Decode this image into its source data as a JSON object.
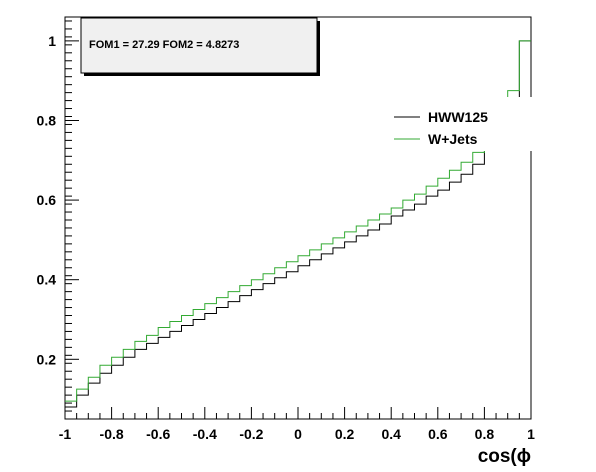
{
  "chart_data": {
    "type": "line",
    "drawstyle": "steps",
    "title": "",
    "xlabel": "cos(ϕ",
    "ylabel": "",
    "xlim": [
      -1,
      1
    ],
    "ylim": [
      0.05,
      1.06
    ],
    "grid": false,
    "x_ticks": [
      -1,
      -0.8,
      -0.6,
      -0.4,
      -0.2,
      0,
      0.2,
      0.4,
      0.6,
      0.8,
      1
    ],
    "x_tick_labels": [
      "-1",
      "-0.8",
      "-0.6",
      "-0.4",
      "-0.2",
      "0",
      "0.2",
      "0.4",
      "0.6",
      "0.8",
      "1"
    ],
    "y_ticks": [
      0.2,
      0.4,
      0.6,
      0.8,
      1
    ],
    "y_tick_labels": [
      "0.2",
      "0.4",
      "0.6",
      "0.8",
      "1"
    ],
    "bin_edges": [
      -1,
      -0.95,
      -0.9,
      -0.85,
      -0.8,
      -0.75,
      -0.7,
      -0.65,
      -0.6,
      -0.55,
      -0.5,
      -0.45,
      -0.4,
      -0.35,
      -0.3,
      -0.25,
      -0.2,
      -0.15,
      -0.1,
      -0.05,
      0,
      0.05,
      0.1,
      0.15,
      0.2,
      0.25,
      0.3,
      0.35,
      0.4,
      0.45,
      0.5,
      0.55,
      0.6,
      0.65,
      0.7,
      0.75,
      0.8,
      0.85,
      0.9,
      0.95,
      1
    ],
    "legend_position": "top-right",
    "series": [
      {
        "name": "HWW125",
        "color": "#000000",
        "values": [
          0.08,
          0.11,
          0.14,
          0.165,
          0.185,
          0.205,
          0.225,
          0.24,
          0.255,
          0.27,
          0.285,
          0.3,
          0.315,
          0.33,
          0.345,
          0.36,
          0.375,
          0.39,
          0.405,
          0.42,
          0.435,
          0.45,
          0.465,
          0.48,
          0.495,
          0.51,
          0.525,
          0.54,
          0.56,
          0.575,
          0.59,
          0.61,
          0.625,
          0.645,
          0.665,
          0.69,
          0.735,
          0.79,
          0.85,
          1.0
        ]
      },
      {
        "name": "W+Jets",
        "color": "#33aa33",
        "values": [
          0.095,
          0.125,
          0.155,
          0.185,
          0.205,
          0.225,
          0.245,
          0.26,
          0.28,
          0.295,
          0.31,
          0.325,
          0.34,
          0.355,
          0.37,
          0.385,
          0.4,
          0.415,
          0.43,
          0.445,
          0.46,
          0.475,
          0.49,
          0.505,
          0.52,
          0.535,
          0.55,
          0.565,
          0.58,
          0.6,
          0.615,
          0.635,
          0.655,
          0.675,
          0.695,
          0.72,
          0.76,
          0.815,
          0.875,
          1.0
        ]
      }
    ],
    "stats_box": {
      "text": "FOM1 = 27.29 FOM2 = 4.8273"
    }
  }
}
